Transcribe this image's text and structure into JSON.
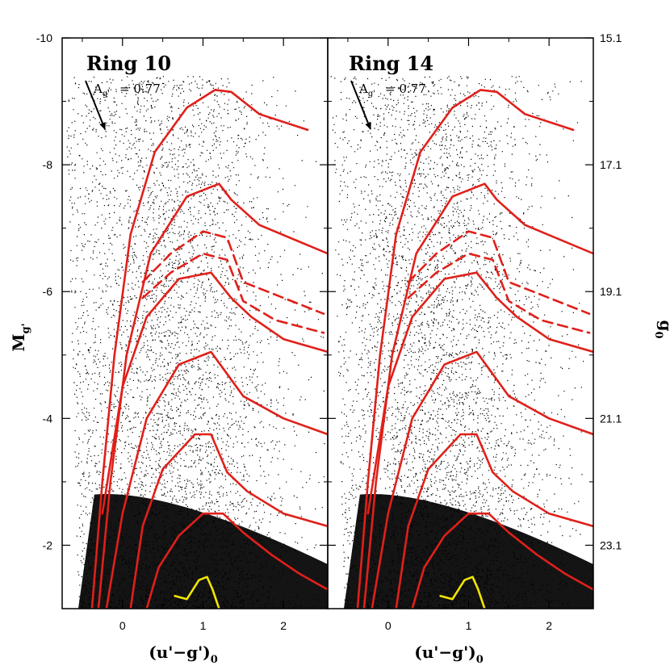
{
  "chart_data": [
    {
      "type": "scatter",
      "panel": "Ring 10",
      "title": "Ring 10",
      "extinction_label": "A",
      "extinction_sub": "g'",
      "extinction_value": "= 0.77",
      "xlabel": "(u'−g')",
      "xlabel_sub": "0",
      "ylabel": "M",
      "ylabel_sub": "g'",
      "xlim": [
        -0.75,
        2.55
      ],
      "ylim": [
        -1.0,
        -10.0
      ],
      "x_ticks": [
        "0",
        "1",
        "2"
      ],
      "y_ticks": [
        "-2",
        "-4",
        "-6",
        "-8",
        "-10"
      ],
      "series": [
        {
          "style": "solid",
          "color": "#e0201a",
          "x": [
            -0.38,
            -0.25,
            -0.1,
            0.1,
            0.4,
            0.8,
            1.15,
            1.35,
            1.7,
            2.3
          ],
          "y": [
            -1.0,
            -3.0,
            -5.0,
            -6.9,
            -8.2,
            -8.9,
            -9.18,
            -9.15,
            -8.8,
            -8.55
          ]
        },
        {
          "style": "solid",
          "color": "#e0201a",
          "x": [
            -0.3,
            -0.15,
            0.05,
            0.35,
            0.8,
            1.2,
            1.35,
            1.7,
            2.55
          ],
          "y": [
            -1.0,
            -3.0,
            -5.0,
            -6.6,
            -7.5,
            -7.7,
            -7.45,
            -7.05,
            -6.6
          ]
        },
        {
          "style": "dashed",
          "color": "#e0201a",
          "x": [
            0.25,
            0.6,
            1.0,
            1.3,
            1.5,
            1.9,
            2.5
          ],
          "y": [
            -6.15,
            -6.6,
            -6.95,
            -6.85,
            -6.15,
            -5.95,
            -5.65
          ]
        },
        {
          "style": "dashed",
          "color": "#e0201a",
          "x": [
            0.25,
            0.6,
            1.0,
            1.3,
            1.5,
            1.9,
            2.5
          ],
          "y": [
            -5.9,
            -6.3,
            -6.6,
            -6.5,
            -5.85,
            -5.55,
            -5.35
          ]
        },
        {
          "style": "solid",
          "color": "#e0201a",
          "x": [
            -0.25,
            0.0,
            0.3,
            0.7,
            1.1,
            1.35,
            1.6,
            2.0,
            2.55
          ],
          "y": [
            -2.5,
            -4.5,
            -5.6,
            -6.2,
            -6.3,
            -5.9,
            -5.6,
            -5.25,
            -5.05
          ]
        },
        {
          "style": "solid",
          "color": "#e0201a",
          "x": [
            -0.2,
            0.0,
            0.3,
            0.7,
            1.1,
            1.3,
            1.5,
            2.0,
            2.55
          ],
          "y": [
            -1.0,
            -2.5,
            -4.0,
            -4.85,
            -5.05,
            -4.7,
            -4.35,
            -4.0,
            -3.75
          ]
        },
        {
          "style": "solid",
          "color": "#e0201a",
          "x": [
            0.1,
            0.25,
            0.5,
            0.9,
            1.1,
            1.3,
            1.55,
            2.0,
            2.55
          ],
          "y": [
            -1.0,
            -2.3,
            -3.2,
            -3.75,
            -3.75,
            -3.15,
            -2.85,
            -2.5,
            -2.3
          ]
        },
        {
          "style": "solid",
          "color": "#e0201a",
          "x": [
            0.3,
            0.45,
            0.7,
            1.0,
            1.25,
            1.5,
            1.85,
            2.2,
            2.55
          ],
          "y": [
            -1.0,
            -1.65,
            -2.15,
            -2.5,
            -2.5,
            -2.2,
            -1.85,
            -1.55,
            -1.3
          ]
        },
        {
          "style": "solid",
          "color": "#f2e600",
          "x": [
            0.65,
            0.8,
            0.95,
            1.05,
            1.12,
            1.2
          ],
          "y": [
            -1.2,
            -1.15,
            -1.45,
            -1.5,
            -1.3,
            -1.0
          ]
        }
      ]
    },
    {
      "type": "scatter",
      "panel": "Ring 14",
      "title": "Ring 14",
      "extinction_label": "A",
      "extinction_sub": "g'",
      "extinction_value": "= 0.77",
      "xlabel": "(u'−g')",
      "xlabel_sub": "0",
      "y2label": "g",
      "y2label_sub": "0",
      "y2label_sup": "'",
      "xlim": [
        -0.75,
        2.55
      ],
      "ylim": [
        -1.0,
        -10.0
      ],
      "x_ticks": [
        "0",
        "1",
        "2"
      ],
      "y2_ticks": [
        "15.1",
        "17.1",
        "19.1",
        "21.1",
        "23.1"
      ],
      "series": [
        {
          "style": "solid",
          "color": "#e0201a",
          "x": [
            -0.38,
            -0.25,
            -0.1,
            0.1,
            0.4,
            0.8,
            1.15,
            1.35,
            1.7,
            2.3
          ],
          "y": [
            -1.0,
            -3.0,
            -5.0,
            -6.9,
            -8.2,
            -8.9,
            -9.18,
            -9.15,
            -8.8,
            -8.55
          ]
        },
        {
          "style": "solid",
          "color": "#e0201a",
          "x": [
            -0.3,
            -0.15,
            0.05,
            0.35,
            0.8,
            1.2,
            1.35,
            1.7,
            2.55
          ],
          "y": [
            -1.0,
            -3.0,
            -5.0,
            -6.6,
            -7.5,
            -7.7,
            -7.45,
            -7.05,
            -6.6
          ]
        },
        {
          "style": "dashed",
          "color": "#e0201a",
          "x": [
            0.25,
            0.6,
            1.0,
            1.3,
            1.5,
            1.9,
            2.5
          ],
          "y": [
            -6.15,
            -6.6,
            -6.95,
            -6.85,
            -6.15,
            -5.95,
            -5.65
          ]
        },
        {
          "style": "dashed",
          "color": "#e0201a",
          "x": [
            0.25,
            0.6,
            1.0,
            1.3,
            1.5,
            1.9,
            2.5
          ],
          "y": [
            -5.9,
            -6.3,
            -6.6,
            -6.5,
            -5.85,
            -5.55,
            -5.35
          ]
        },
        {
          "style": "solid",
          "color": "#e0201a",
          "x": [
            -0.25,
            0.0,
            0.3,
            0.7,
            1.1,
            1.35,
            1.6,
            2.0,
            2.55
          ],
          "y": [
            -2.5,
            -4.5,
            -5.6,
            -6.2,
            -6.3,
            -5.9,
            -5.6,
            -5.25,
            -5.05
          ]
        },
        {
          "style": "solid",
          "color": "#e0201a",
          "x": [
            -0.2,
            0.0,
            0.3,
            0.7,
            1.1,
            1.3,
            1.5,
            2.0,
            2.55
          ],
          "y": [
            -1.0,
            -2.5,
            -4.0,
            -4.85,
            -5.05,
            -4.7,
            -4.35,
            -4.0,
            -3.75
          ]
        },
        {
          "style": "solid",
          "color": "#e0201a",
          "x": [
            0.1,
            0.25,
            0.5,
            0.9,
            1.1,
            1.3,
            1.55,
            2.0,
            2.55
          ],
          "y": [
            -1.0,
            -2.3,
            -3.2,
            -3.75,
            -3.75,
            -3.15,
            -2.85,
            -2.5,
            -2.3
          ]
        },
        {
          "style": "solid",
          "color": "#e0201a",
          "x": [
            0.3,
            0.45,
            0.7,
            1.0,
            1.25,
            1.5,
            1.85,
            2.2,
            2.55
          ],
          "y": [
            -1.0,
            -1.65,
            -2.15,
            -2.5,
            -2.5,
            -2.2,
            -1.85,
            -1.55,
            -1.3
          ]
        },
        {
          "style": "solid",
          "color": "#f2e600",
          "x": [
            0.65,
            0.8,
            0.95,
            1.05,
            1.12,
            1.2
          ],
          "y": [
            -1.2,
            -1.15,
            -1.45,
            -1.5,
            -1.3,
            -1.0
          ]
        }
      ]
    }
  ],
  "colors": {
    "isochrone": "#e0201a",
    "yellow_track": "#f2e600",
    "points": "#000000"
  }
}
